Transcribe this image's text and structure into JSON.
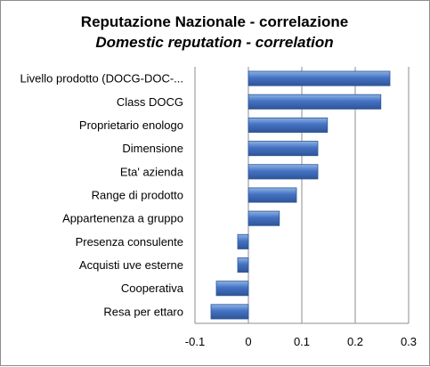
{
  "chart_data": {
    "type": "bar",
    "orientation": "horizontal",
    "title": "Reputazione Nazionale  - correlazione",
    "subtitle": "Domestic reputation - correlation",
    "categories": [
      "Livello prodotto (DOCG-DOC-...",
      "Class DOCG",
      "Proprietario enologo",
      "Dimensione",
      "Eta' azienda",
      "Range di prodotto",
      "Appartenenza a gruppo",
      "Presenza consulente",
      "Acquisti uve esterne",
      "Cooperativa",
      "Resa per ettaro"
    ],
    "values": [
      0.265,
      0.248,
      0.148,
      0.13,
      0.13,
      0.09,
      0.058,
      -0.02,
      -0.02,
      -0.06,
      -0.07
    ],
    "xlim": [
      -0.1,
      0.3
    ],
    "xticks": [
      -0.1,
      0,
      0.1,
      0.2,
      0.3
    ],
    "xtick_labels": [
      "-0.1",
      "0",
      "0.1",
      "0.2",
      "0.3"
    ],
    "grid": true,
    "legend": "none",
    "bar_color": "#4472c4",
    "bar_color_light": "#8eb4e3",
    "bar_border": "#2f5597"
  }
}
